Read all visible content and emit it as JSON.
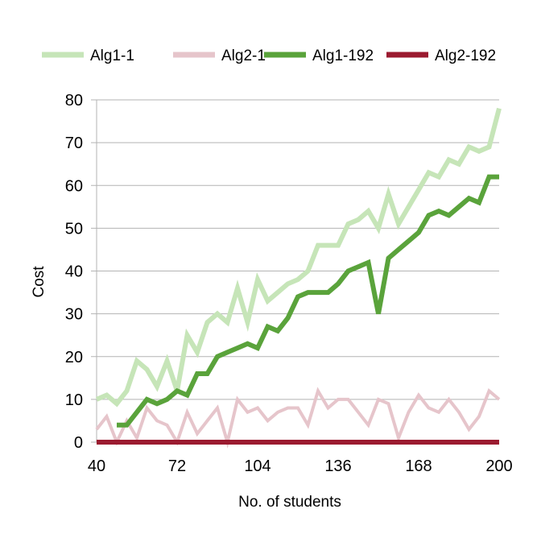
{
  "chart_data": {
    "type": "line",
    "title": "",
    "xlabel": "No. of students",
    "ylabel": "Cost",
    "xlim": [
      40,
      200
    ],
    "ylim": [
      0,
      80
    ],
    "x_ticks": [
      40,
      72,
      104,
      136,
      168,
      200
    ],
    "y_ticks": [
      0,
      10,
      20,
      30,
      40,
      50,
      60,
      70,
      80
    ],
    "grid": "horizontal",
    "legend_position": "top",
    "x": [
      40,
      44,
      48,
      52,
      56,
      60,
      64,
      68,
      72,
      76,
      80,
      84,
      88,
      92,
      96,
      100,
      104,
      108,
      112,
      116,
      120,
      124,
      128,
      132,
      136,
      140,
      144,
      148,
      152,
      156,
      160,
      164,
      168,
      172,
      176,
      180,
      184,
      188,
      192,
      196,
      200
    ],
    "series": [
      {
        "name": "Alg1-1",
        "color": "#c6e5b8",
        "values": [
          10,
          11,
          9,
          12,
          19,
          17,
          13,
          19,
          12,
          25,
          21,
          28,
          30,
          28,
          36,
          28,
          38,
          33,
          35,
          37,
          38,
          40,
          46,
          46,
          46,
          51,
          52,
          54,
          50,
          58,
          51,
          55,
          59,
          63,
          62,
          66,
          65,
          69,
          68,
          69,
          78
        ]
      },
      {
        "name": "Alg2-1",
        "color": "#e6c5cb",
        "values": [
          3,
          6,
          0,
          5,
          1,
          8,
          5,
          4,
          0,
          7,
          2,
          5,
          8,
          0,
          10,
          7,
          8,
          5,
          7,
          8,
          8,
          4,
          12,
          8,
          10,
          10,
          7,
          4,
          10,
          9,
          1,
          7,
          11,
          8,
          7,
          10,
          7,
          3,
          6,
          12,
          10
        ]
      },
      {
        "name": "Alg1-192",
        "color": "#5aa33b",
        "values": [
          null,
          null,
          4,
          4,
          7,
          10,
          9,
          10,
          12,
          11,
          16,
          16,
          20,
          21,
          22,
          23,
          22,
          27,
          26,
          29,
          34,
          35,
          35,
          35,
          37,
          40,
          41,
          42,
          30,
          43,
          45,
          47,
          49,
          53,
          54,
          53,
          55,
          57,
          56,
          62,
          62
        ]
      },
      {
        "name": "Alg2-192",
        "color": "#9b1b30",
        "values": [
          0,
          0,
          0,
          0,
          0,
          0,
          0,
          0,
          0,
          0,
          0,
          0,
          0,
          0,
          0,
          0,
          0,
          0,
          0,
          0,
          0,
          0,
          0,
          0,
          0,
          0,
          0,
          0,
          0,
          0,
          0,
          0,
          0,
          0,
          0,
          0,
          0,
          0,
          0,
          0,
          0
        ]
      }
    ]
  }
}
